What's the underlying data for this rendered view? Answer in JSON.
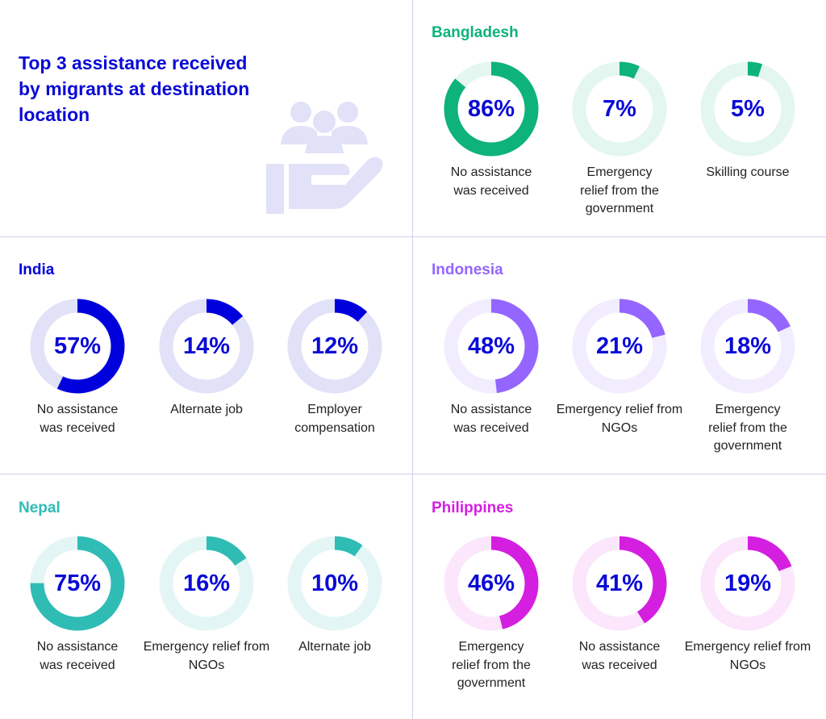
{
  "title": "Top 3 assistance received by migrants at destination location",
  "illustration_icon": "helping-hand-people-icon",
  "value_text_color": "#0a0ad6",
  "chart_data": [
    {
      "type": "pie",
      "variant": "donut",
      "country": "Bangladesh",
      "color": "#0db37a",
      "track_color": "#e3f6ef",
      "items": [
        {
          "label": "No assistance was received",
          "value": 86,
          "text": "86%"
        },
        {
          "label": "Emergency relief from the government",
          "value": 7,
          "text": "7%"
        },
        {
          "label": "Skilling course",
          "value": 5,
          "text": "5%"
        }
      ]
    },
    {
      "type": "pie",
      "variant": "donut",
      "country": "India",
      "color": "#0000dd",
      "track_color": "#e1e1f8",
      "items": [
        {
          "label": "No assistance was received",
          "value": 57,
          "text": "57%"
        },
        {
          "label": "Alternate job",
          "value": 14,
          "text": "14%"
        },
        {
          "label": "Employer compensation",
          "value": 12,
          "text": "12%"
        }
      ]
    },
    {
      "type": "pie",
      "variant": "donut",
      "country": "Indonesia",
      "color": "#9466ff",
      "track_color": "#f1edff",
      "items": [
        {
          "label": "No assistance was received",
          "value": 48,
          "text": "48%"
        },
        {
          "label": "Emergency relief from NGOs",
          "value": 21,
          "text": "21%"
        },
        {
          "label": "Emergency relief from the government",
          "value": 18,
          "text": "18%"
        }
      ]
    },
    {
      "type": "pie",
      "variant": "donut",
      "country": "Nepal",
      "color": "#2fbcb5",
      "track_color": "#e3f6f5",
      "items": [
        {
          "label": "No assistance was received",
          "value": 75,
          "text": "75%"
        },
        {
          "label": "Emergency relief from NGOs",
          "value": 16,
          "text": "16%"
        },
        {
          "label": "Alternate job",
          "value": 10,
          "text": "10%"
        }
      ]
    },
    {
      "type": "pie",
      "variant": "donut",
      "country": "Philippines",
      "color": "#d41fe0",
      "track_color": "#fbe6fb",
      "items": [
        {
          "label": "Emergency relief from the government",
          "value": 46,
          "text": "46%"
        },
        {
          "label": "No assistance was received",
          "value": 41,
          "text": "41%"
        },
        {
          "label": "Emergency relief from NGOs",
          "value": 19,
          "text": "19%"
        }
      ]
    }
  ]
}
